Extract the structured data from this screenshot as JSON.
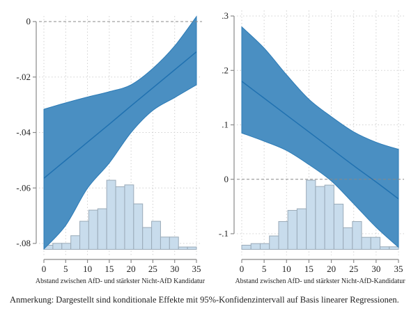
{
  "chart_data": [
    {
      "type": "area",
      "title": "",
      "xlabel": "Abstand zwischen AfD- und stärkster Nicht-AfD Kandidatur",
      "ylabel": "",
      "xlim": [
        0,
        35
      ],
      "ylim": [
        -0.08,
        0
      ],
      "xticks": [
        0,
        5,
        10,
        15,
        20,
        25,
        30,
        35
      ],
      "xtick_labels": [
        "0",
        "5",
        "10",
        "15",
        "20",
        "25",
        "30",
        "35"
      ],
      "yticks": [
        0,
        -0.02,
        -0.04,
        -0.06,
        -0.08
      ],
      "ytick_labels": [
        "0",
        "-.02",
        "-.04",
        "-.06",
        "-.08"
      ],
      "grid": true,
      "reference_line": 0,
      "x": [
        0,
        5,
        10,
        15,
        20,
        25,
        30,
        35
      ],
      "series": [
        {
          "name": "Konditionaler Effekt",
          "values": [
            -0.0565,
            -0.05,
            -0.0435,
            -0.037,
            -0.0304,
            -0.0239,
            -0.0174,
            -0.0109
          ]
        },
        {
          "name": "95%-KI obere Grenze",
          "values": [
            -0.0316,
            -0.0293,
            -0.0272,
            -0.0253,
            -0.0228,
            -0.0169,
            -0.0088,
            0.0018
          ]
        },
        {
          "name": "95%-KI untere Grenze",
          "values": [
            -0.082,
            -0.0735,
            -0.0601,
            -0.051,
            -0.04,
            -0.032,
            -0.0274,
            -0.0228
          ]
        }
      ],
      "histogram": {
        "bin_edges": [
          0,
          2.06,
          4.12,
          6.18,
          8.24,
          10.29,
          12.35,
          14.41,
          16.47,
          18.53,
          20.59,
          22.65,
          24.71,
          26.76,
          28.82,
          30.88,
          32.94,
          35
        ],
        "relative_heights": [
          6,
          8.7,
          8.7,
          19.7,
          40.4,
          56.4,
          58.4,
          99.4,
          90,
          92.7,
          65.4,
          31.4,
          40.4,
          17.7,
          17.7,
          3.4,
          3.4
        ]
      }
    },
    {
      "type": "area",
      "title": "",
      "xlabel": "Abstand zwischen AfD- und stärkster Nicht-AfD-Kandidatur",
      "ylabel": "",
      "xlim": [
        0,
        35
      ],
      "ylim": [
        -0.1,
        0.3
      ],
      "xticks": [
        0,
        5,
        10,
        15,
        20,
        25,
        30,
        35
      ],
      "xtick_labels": [
        "0",
        "5",
        "10",
        "15",
        "20",
        "25",
        "30",
        "35"
      ],
      "yticks": [
        0.3,
        0.2,
        0.1,
        0,
        -0.1
      ],
      "ytick_labels": [
        ".3",
        ".2",
        ".1",
        "0",
        "-.1"
      ],
      "grid": true,
      "reference_line": 0,
      "x": [
        0,
        5,
        10,
        15,
        20,
        25,
        30,
        35
      ],
      "series": [
        {
          "name": "Konditionaler Effekt",
          "values": [
            0.18,
            0.149,
            0.118,
            0.087,
            0.056,
            0.025,
            -0.005,
            -0.036
          ]
        },
        {
          "name": "95%-KI obere Grenze",
          "values": [
            0.28,
            0.241,
            0.192,
            0.147,
            0.115,
            0.087,
            0.068,
            0.055
          ]
        },
        {
          "name": "95%-KI untere Grenze",
          "values": [
            0.085,
            0.07,
            0.053,
            0.027,
            -0.003,
            -0.045,
            -0.088,
            -0.125
          ]
        }
      ],
      "histogram": {
        "bin_edges": [
          0,
          2.06,
          4.12,
          6.18,
          8.24,
          10.29,
          12.35,
          14.41,
          16.47,
          18.53,
          20.59,
          22.65,
          24.71,
          26.76,
          28.82,
          30.88,
          32.94,
          35
        ],
        "relative_heights": [
          6,
          8.3,
          8.3,
          19.3,
          40,
          56,
          58.3,
          99.3,
          90.3,
          92.3,
          65,
          31,
          40,
          17.3,
          17.3,
          3.7,
          3.7
        ]
      }
    }
  ],
  "note": "Anmerkung: Dargestellt sind konditionale Effekte mit 95%-Konfidenzintervall auf Basis linearer Regressionen.",
  "colors": {
    "ci_fill": "#4a8fc2",
    "ci_edge": "#2c7bb6",
    "line": "#2071b0",
    "hist_fill": "#c8dcec",
    "hist_edge": "#9aaab8",
    "grid": "#d0d0d0",
    "axis": "#888888",
    "refline": "#888888"
  }
}
